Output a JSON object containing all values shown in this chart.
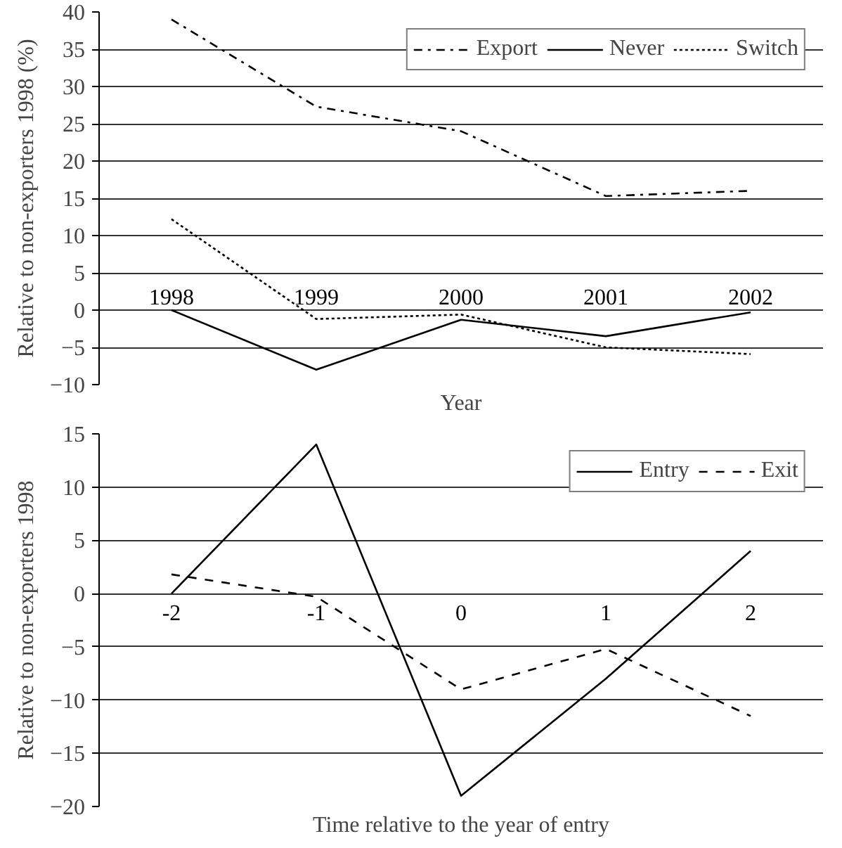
{
  "chart_data": [
    {
      "type": "line",
      "xlabel": "Year",
      "ylabel": "Relative to non-exporters 1998 (%)",
      "categories": [
        "1998",
        "1999",
        "2000",
        "2001",
        "2002"
      ],
      "series": [
        {
          "name": "Export",
          "color": "#000000",
          "line_style": "dashdot",
          "values": [
            39,
            27.3,
            24,
            15.3,
            16
          ]
        },
        {
          "name": "Never",
          "color": "#000000",
          "line_style": "solid",
          "values": [
            0,
            -8,
            -1.3,
            -3.5,
            -0.3
          ]
        },
        {
          "name": "Switch",
          "color": "#000000",
          "line_style": "dotted",
          "values": [
            12.2,
            -1.2,
            -0.6,
            -5,
            -5.9
          ]
        }
      ],
      "ylim": [
        -10,
        40
      ],
      "yticks": [
        -10,
        -5,
        0,
        5,
        10,
        15,
        20,
        25,
        30,
        35,
        40
      ],
      "grid": "y",
      "legend": "top right"
    },
    {
      "type": "line",
      "xlabel": "Time relative to the year of entry",
      "ylabel": "Relative to non-exporters 1998",
      "categories": [
        "-2",
        "-1",
        "0",
        "1",
        "2"
      ],
      "series": [
        {
          "name": "Entry",
          "color": "#000000",
          "line_style": "solid",
          "values": [
            0,
            14,
            -19,
            -8,
            4
          ]
        },
        {
          "name": "Exit",
          "color": "#000000",
          "line_style": "dashed",
          "values": [
            1.8,
            -0.3,
            -9,
            -5.2,
            -11.5
          ]
        }
      ],
      "ylim": [
        -20,
        15
      ],
      "yticks": [
        -20,
        -15,
        -10,
        -5,
        0,
        5,
        10,
        15
      ],
      "grid": "y",
      "legend": "top right"
    }
  ]
}
